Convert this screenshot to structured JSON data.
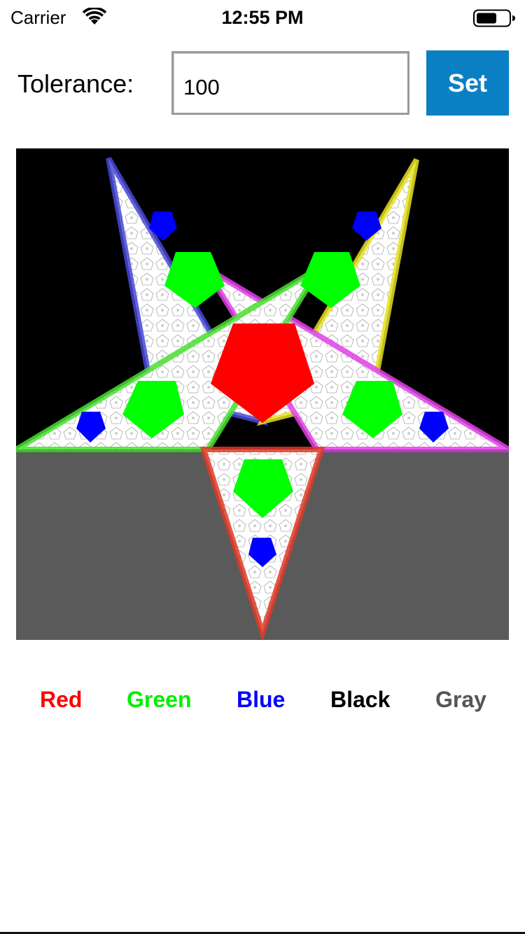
{
  "status_bar": {
    "carrier": "Carrier",
    "time": "12:55 PM",
    "wifi_icon": "wifi-icon",
    "battery_icon": "battery-icon"
  },
  "tolerance": {
    "label": "Tolerance:",
    "value": "100",
    "set_label": "Set",
    "set_color": "#0b7fc4"
  },
  "fractal": {
    "background_top": "#000000",
    "background_bottom": "#5a5a5a",
    "center_pentagon_color": "#ff0000",
    "inner_pentagon_color": "#00ff00",
    "tip_pentagon_color": "#0000ff",
    "arm_colors": [
      "#4040d0",
      "#e0e000",
      "#e040e0",
      "#e03020",
      "#40e020"
    ]
  },
  "colors": [
    {
      "label": "Red",
      "color": "#ff0000"
    },
    {
      "label": "Green",
      "color": "#00ee00"
    },
    {
      "label": "Blue",
      "color": "#0000ff"
    },
    {
      "label": "Black",
      "color": "#000000"
    },
    {
      "label": "Gray",
      "color": "#555555"
    }
  ]
}
